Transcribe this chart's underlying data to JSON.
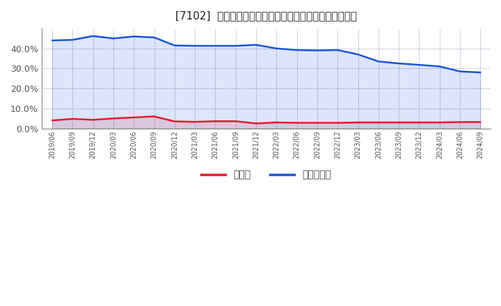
{
  "title": "[7102]  現顀金、有利子負債の総資産に対する比率の推移",
  "x_labels": [
    "2019/06",
    "2019/09",
    "2019/12",
    "2020/03",
    "2020/06",
    "2020/09",
    "2020/12",
    "2021/03",
    "2021/06",
    "2021/09",
    "2021/12",
    "2022/03",
    "2022/06",
    "2022/09",
    "2022/12",
    "2023/03",
    "2023/06",
    "2023/09",
    "2023/12",
    "2024/03",
    "2024/06",
    "2024/09"
  ],
  "cash": [
    0.04,
    0.048,
    0.043,
    0.05,
    0.055,
    0.06,
    0.035,
    0.033,
    0.036,
    0.036,
    0.025,
    0.03,
    0.028,
    0.028,
    0.028,
    0.03,
    0.03,
    0.03,
    0.03,
    0.03,
    0.032,
    0.032
  ],
  "debt": [
    0.44,
    0.443,
    0.462,
    0.45,
    0.46,
    0.455,
    0.415,
    0.413,
    0.413,
    0.413,
    0.418,
    0.4,
    0.392,
    0.39,
    0.392,
    0.37,
    0.335,
    0.325,
    0.318,
    0.31,
    0.285,
    0.28
  ],
  "cash_color": "#e8192c",
  "debt_color": "#1a56db",
  "background_color": "#ffffff",
  "plot_bg_color": "#ffffff",
  "grid_color": "#8888bb",
  "legend_cash": "現顀金",
  "legend_debt": "有利子負債",
  "ylim": [
    0.0,
    0.5
  ],
  "yticks": [
    0.0,
    0.1,
    0.2,
    0.3,
    0.4
  ],
  "line_width": 1.8
}
